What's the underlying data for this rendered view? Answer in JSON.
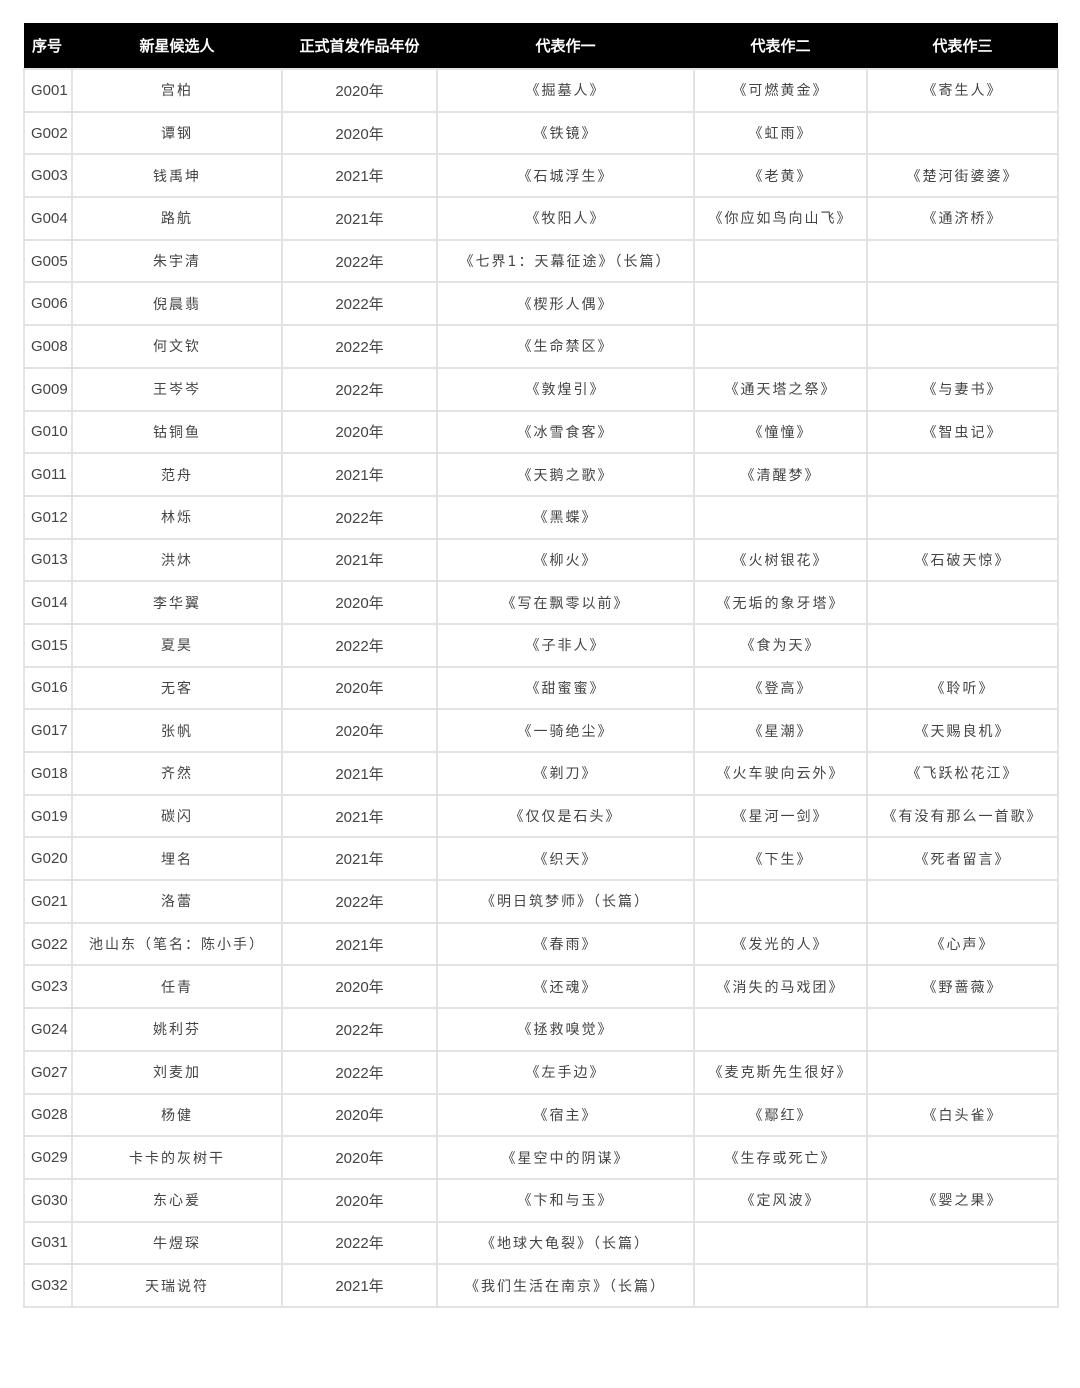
{
  "table": {
    "headers": [
      "序号",
      "新星候选人",
      "正式首发作品年份",
      "代表作一",
      "代表作二",
      "代表作三"
    ],
    "rows": [
      [
        "G001",
        "宫柏",
        "2020年",
        "《掘墓人》",
        "《可燃黄金》",
        "《寄生人》"
      ],
      [
        "G002",
        "谭钢",
        "2020年",
        "《铁镜》",
        "《虹雨》",
        ""
      ],
      [
        "G003",
        "钱禹坤",
        "2021年",
        "《石城浮生》",
        "《老黄》",
        "《楚河街婆婆》"
      ],
      [
        "G004",
        "路航",
        "2021年",
        "《牧阳人》",
        "《你应如鸟向山飞》",
        "《通济桥》"
      ],
      [
        "G005",
        "朱宇清",
        "2022年",
        "《七界1：天幕征途》（长篇）",
        "",
        ""
      ],
      [
        "G006",
        "倪晨翡",
        "2022年",
        "《楔形人偶》",
        "",
        ""
      ],
      [
        "G008",
        "何文钦",
        "2022年",
        "《生命禁区》",
        "",
        ""
      ],
      [
        "G009",
        "王岑岑",
        "2022年",
        "《敦煌引》",
        "《通天塔之祭》",
        "《与妻书》"
      ],
      [
        "G010",
        "钴铜鱼",
        "2020年",
        "《冰雪食客》",
        "《憧憧》",
        "《智虫记》"
      ],
      [
        "G011",
        "范舟",
        "2021年",
        "《天鹅之歌》",
        "《清醒梦》",
        ""
      ],
      [
        "G012",
        "林烁",
        "2022年",
        "《黑蝶》",
        "",
        ""
      ],
      [
        "G013",
        "洪炑",
        "2021年",
        "《柳火》",
        "《火树银花》",
        "《石破天惊》"
      ],
      [
        "G014",
        "李华翼",
        "2020年",
        "《写在飘零以前》",
        "《无垢的象牙塔》",
        ""
      ],
      [
        "G015",
        "夏昊",
        "2022年",
        "《子非人》",
        "《食为天》",
        ""
      ],
      [
        "G016",
        "无客",
        "2020年",
        "《甜蜜蜜》",
        "《登高》",
        "《聆听》"
      ],
      [
        "G017",
        "张帆",
        "2020年",
        "《一骑绝尘》",
        "《星潮》",
        "《天赐良机》"
      ],
      [
        "G018",
        "齐然",
        "2021年",
        "《剃刀》",
        "《火车驶向云外》",
        "《飞跃松花江》"
      ],
      [
        "G019",
        "碳闪",
        "2021年",
        "《仅仅是石头》",
        "《星河一剑》",
        "《有没有那么一首歌》"
      ],
      [
        "G020",
        "埋名",
        "2021年",
        "《织天》",
        "《下生》",
        "《死者留言》"
      ],
      [
        "G021",
        "洛蕾",
        "2022年",
        "《明日筑梦师》（长篇）",
        "",
        ""
      ],
      [
        "G022",
        "池山东（笔名：陈小手）",
        "2021年",
        "《春雨》",
        "《发光的人》",
        "《心声》"
      ],
      [
        "G023",
        "任青",
        "2020年",
        "《还魂》",
        "《消失的马戏团》",
        "《野蔷薇》"
      ],
      [
        "G024",
        "姚利芬",
        "2022年",
        "《拯救嗅觉》",
        "",
        ""
      ],
      [
        "G027",
        "刘麦加",
        "2022年",
        "《左手边》",
        "《麦克斯先生很好》",
        ""
      ],
      [
        "G028",
        "杨健",
        "2020年",
        "《宿主》",
        "《鄢红》",
        "《白头雀》"
      ],
      [
        "G029",
        "卡卡的灰树干",
        "2020年",
        "《星空中的阴谋》",
        "《生存或死亡》",
        ""
      ],
      [
        "G030",
        "东心爰",
        "2020年",
        "《卞和与玉》",
        "《定风波》",
        "《婴之果》"
      ],
      [
        "G031",
        "牛煜琛",
        "2022年",
        "《地球大龟裂》（长篇）",
        "",
        ""
      ],
      [
        "G032",
        "天瑞说符",
        "2021年",
        "《我们生活在南京》（长篇）",
        "",
        ""
      ]
    ]
  }
}
